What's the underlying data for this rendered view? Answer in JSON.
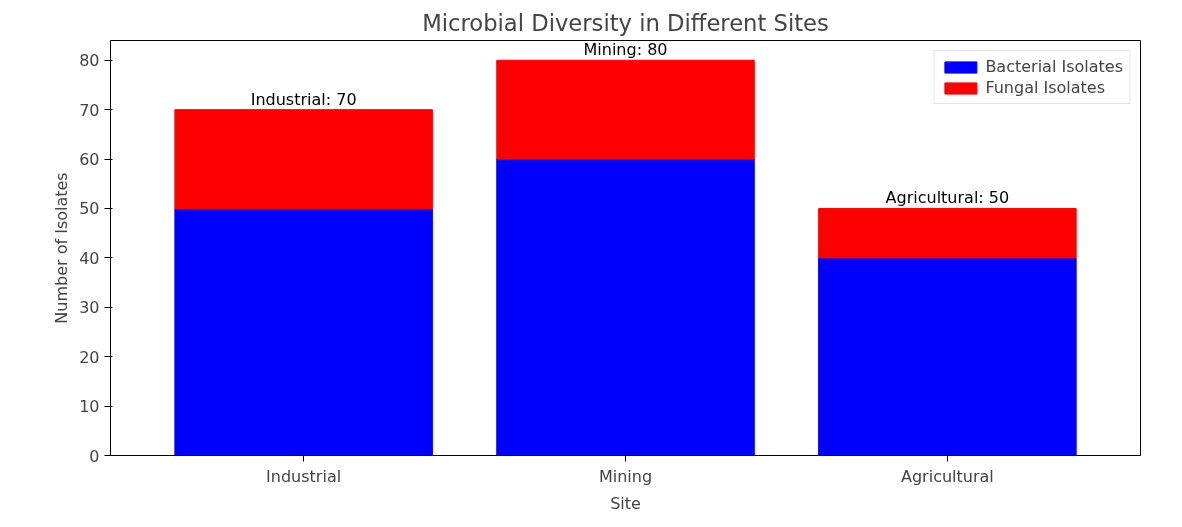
{
  "chart_data": {
    "type": "bar",
    "title": "Microbial Diversity in Different Sites",
    "xlabel": "Site",
    "ylabel": "Number of Isolates",
    "categories": [
      "Industrial",
      "Mining",
      "Agricultural"
    ],
    "stacked": true,
    "series": [
      {
        "name": "Bacterial Isolates",
        "color": "#0000ff",
        "values": [
          50,
          60,
          40
        ]
      },
      {
        "name": "Fungal Isolates",
        "color": "#ff0000",
        "values": [
          20,
          20,
          10
        ]
      }
    ],
    "totals": [
      "Industrial: 70",
      "Mining: 80",
      "Agricultural: 50"
    ],
    "ylim": [
      0,
      84
    ],
    "yticks": [
      0,
      10,
      20,
      30,
      40,
      50,
      60,
      70,
      80
    ],
    "legend": "top right",
    "grid": false
  }
}
